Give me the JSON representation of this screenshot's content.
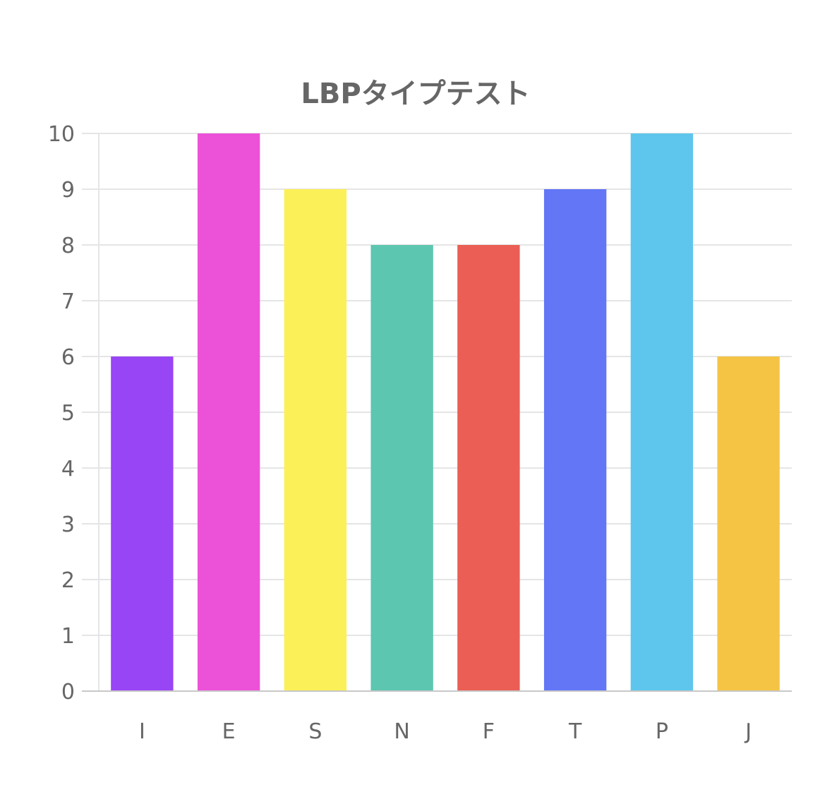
{
  "chart_data": {
    "type": "bar",
    "title": "LBPタイプテスト",
    "categories": [
      "I",
      "E",
      "S",
      "N",
      "F",
      "T",
      "P",
      "J"
    ],
    "values": [
      6,
      10,
      9,
      8,
      8,
      9,
      10,
      6
    ],
    "colors": [
      "#9845f5",
      "#ec52d8",
      "#fbf057",
      "#5dc6b0",
      "#ea5e55",
      "#6276f6",
      "#5ec6ec",
      "#f5c445"
    ],
    "xlabel": "",
    "ylabel": "",
    "ylim": [
      0,
      10
    ],
    "yticks": [
      0,
      1,
      2,
      3,
      4,
      5,
      6,
      7,
      8,
      9,
      10
    ],
    "grid": true,
    "legend": "none"
  }
}
